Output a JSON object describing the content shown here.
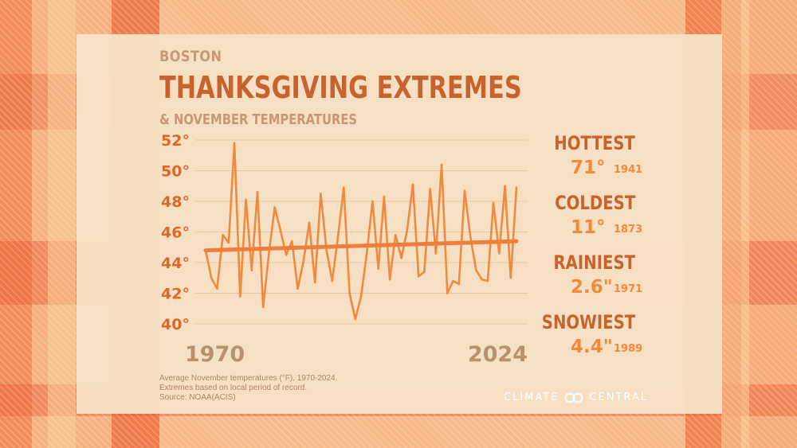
{
  "header": {
    "city": "BOSTON",
    "title": "THANKSGIVING EXTREMES",
    "subtitle": "& NOVEMBER TEMPERATURES"
  },
  "chart_data": {
    "type": "line",
    "xlim": [
      1970,
      2024
    ],
    "ylim": [
      40,
      52
    ],
    "yticks": [
      40,
      42,
      44,
      46,
      48,
      50,
      52
    ],
    "ytick_labels": [
      "40°",
      "42°",
      "44°",
      "46°",
      "48°",
      "50°",
      "52°"
    ],
    "xtick_labels": [
      "1970",
      "2024"
    ],
    "grid": true,
    "series": [
      {
        "kind": "line",
        "x": [
          1970,
          1971,
          1972,
          1973,
          1974,
          1975,
          1976,
          1977,
          1978,
          1979,
          1980,
          1981,
          1982,
          1983,
          1984,
          1985,
          1986,
          1987,
          1988,
          1989,
          1990,
          1991,
          1992,
          1993,
          1994,
          1995,
          1996,
          1997,
          1998,
          1999,
          2000,
          2001,
          2002,
          2003,
          2004,
          2005,
          2006,
          2007,
          2008,
          2009,
          2010,
          2011,
          2012,
          2013,
          2014,
          2015,
          2016,
          2017,
          2018,
          2019,
          2020,
          2021,
          2022,
          2023,
          2024
        ],
        "y": [
          44.8,
          43.0,
          42.3,
          45.8,
          45.3,
          51.8,
          41.8,
          48.1,
          43.5,
          48.6,
          41.1,
          44.6,
          47.6,
          46.1,
          44.5,
          45.4,
          42.3,
          44.1,
          46.6,
          42.7,
          48.5,
          44.8,
          42.8,
          45.7,
          48.9,
          42.0,
          40.3,
          41.8,
          44.6,
          48.0,
          43.6,
          48.3,
          42.9,
          45.8,
          44.3,
          46.1,
          49.1,
          43.1,
          43.4,
          48.8,
          44.6,
          50.4,
          42.0,
          42.8,
          42.6,
          48.7,
          45.7,
          43.5,
          42.9,
          42.8,
          47.9,
          44.6,
          49.0,
          43.0,
          48.9
        ],
        "color": "#f08a3e"
      },
      {
        "kind": "trend",
        "x": [
          1970,
          2024
        ],
        "y": [
          44.8,
          45.4
        ],
        "color": "#ee7e3c"
      }
    ]
  },
  "footnote": {
    "line1": "Average November temperatures (°F), 1970-2024.",
    "line2": "Extremes based on local period of record.",
    "line3": "Source: NOAA(ACIS)"
  },
  "stats": [
    {
      "label": "HOTTEST",
      "value": "71°",
      "year": "1941"
    },
    {
      "label": "COLDEST",
      "value": "11°",
      "year": "1873"
    },
    {
      "label": "RAINIEST",
      "value": "2.6\"",
      "year": "1971"
    },
    {
      "label": "SNOWIEST",
      "value": "4.4\"",
      "year": "1989"
    }
  ],
  "brand": {
    "left": "CLIMATE",
    "right": "CENTRAL",
    "logo_icon": "infinity-rings-icon"
  },
  "colors": {
    "title": "#c8632e",
    "accent": "#f08a3e",
    "muted": "#c79878",
    "panel": "#f6e2c6"
  }
}
